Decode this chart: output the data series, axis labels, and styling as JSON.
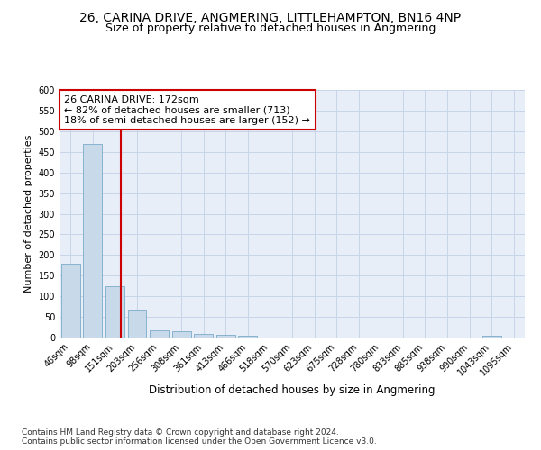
{
  "title": "26, CARINA DRIVE, ANGMERING, LITTLEHAMPTON, BN16 4NP",
  "subtitle": "Size of property relative to detached houses in Angmering",
  "xlabel": "Distribution of detached houses by size in Angmering",
  "ylabel": "Number of detached properties",
  "bar_labels": [
    "46sqm",
    "98sqm",
    "151sqm",
    "203sqm",
    "256sqm",
    "308sqm",
    "361sqm",
    "413sqm",
    "466sqm",
    "518sqm",
    "570sqm",
    "623sqm",
    "675sqm",
    "728sqm",
    "780sqm",
    "833sqm",
    "885sqm",
    "938sqm",
    "990sqm",
    "1043sqm",
    "1095sqm"
  ],
  "bar_values": [
    178,
    468,
    125,
    68,
    17,
    15,
    8,
    6,
    5,
    0,
    0,
    0,
    0,
    0,
    0,
    0,
    0,
    0,
    0,
    5,
    0
  ],
  "bar_color": "#c8daea",
  "bar_edge_color": "#7aaac8",
  "vline_x_index": 2.27,
  "vline_color": "#cc0000",
  "annotation_text": "26 CARINA DRIVE: 172sqm\n← 82% of detached houses are smaller (713)\n18% of semi-detached houses are larger (152) →",
  "annotation_box_color": "#ffffff",
  "annotation_box_edge_color": "#cc0000",
  "ylim": [
    0,
    600
  ],
  "yticks": [
    0,
    50,
    100,
    150,
    200,
    250,
    300,
    350,
    400,
    450,
    500,
    550,
    600
  ],
  "grid_color": "#c8d4e8",
  "background_color": "#e8eef8",
  "footer_text": "Contains HM Land Registry data © Crown copyright and database right 2024.\nContains public sector information licensed under the Open Government Licence v3.0.",
  "title_fontsize": 10,
  "subtitle_fontsize": 9,
  "xlabel_fontsize": 8.5,
  "ylabel_fontsize": 8,
  "tick_fontsize": 7,
  "annotation_fontsize": 8,
  "footer_fontsize": 6.5
}
